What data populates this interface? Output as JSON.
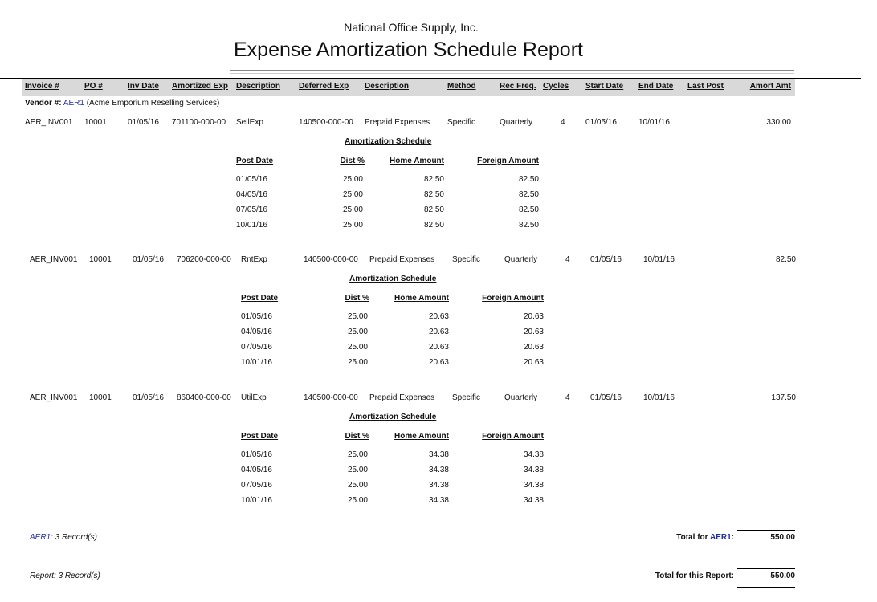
{
  "header": {
    "company": "National Office Supply, Inc.",
    "title": "Expense Amortization Schedule Report"
  },
  "columns": [
    "Invoice #",
    "PO #",
    "Inv Date",
    "Amortized Exp",
    "Description",
    "Deferred Exp",
    "Description",
    "Method",
    "Rec Freq.",
    "Cycles",
    "Start Date",
    "End Date",
    "Last Post",
    "Amort Amt"
  ],
  "vendor": {
    "label": "Vendor #:",
    "id": "AER1",
    "name": "(Acme Emporium Reselling Services)"
  },
  "schedule": {
    "title": "Amortization Schedule",
    "columns": [
      "Post Date",
      "Dist %",
      "Home Amount",
      "Foreign Amount"
    ]
  },
  "entries": [
    {
      "invoice": "AER_INV001",
      "po": "10001",
      "inv_date": "01/05/16",
      "amortized_exp": "701100-000-00",
      "description": "SellExp",
      "deferred_exp": "140500-000-00",
      "deferred_desc": "Prepaid Expenses",
      "method": "Specific",
      "freq": "Quarterly",
      "cycles": "4",
      "start": "01/05/16",
      "end": "10/01/16",
      "last_post": "",
      "amount": "330.00",
      "rows": [
        [
          "01/05/16",
          "25.00",
          "82.50",
          "82.50"
        ],
        [
          "04/05/16",
          "25.00",
          "82.50",
          "82.50"
        ],
        [
          "07/05/16",
          "25.00",
          "82.50",
          "82.50"
        ],
        [
          "10/01/16",
          "25.00",
          "82.50",
          "82.50"
        ]
      ]
    },
    {
      "invoice": "AER_INV001",
      "po": "10001",
      "inv_date": "01/05/16",
      "amortized_exp": "706200-000-00",
      "description": "RntExp",
      "deferred_exp": "140500-000-00",
      "deferred_desc": "Prepaid Expenses",
      "method": "Specific",
      "freq": "Quarterly",
      "cycles": "4",
      "start": "01/05/16",
      "end": "10/01/16",
      "last_post": "",
      "amount": "82.50",
      "rows": [
        [
          "01/05/16",
          "25.00",
          "20.63",
          "20.63"
        ],
        [
          "04/05/16",
          "25.00",
          "20.63",
          "20.63"
        ],
        [
          "07/05/16",
          "25.00",
          "20.63",
          "20.63"
        ],
        [
          "10/01/16",
          "25.00",
          "20.63",
          "20.63"
        ]
      ]
    },
    {
      "invoice": "AER_INV001",
      "po": "10001",
      "inv_date": "01/05/16",
      "amortized_exp": "860400-000-00",
      "description": "UtilExp",
      "deferred_exp": "140500-000-00",
      "deferred_desc": "Prepaid Expenses",
      "method": "Specific",
      "freq": "Quarterly",
      "cycles": "4",
      "start": "01/05/16",
      "end": "10/01/16",
      "last_post": "",
      "amount": "137.50",
      "rows": [
        [
          "01/05/16",
          "25.00",
          "34.38",
          "34.38"
        ],
        [
          "04/05/16",
          "25.00",
          "34.38",
          "34.38"
        ],
        [
          "07/05/16",
          "25.00",
          "34.38",
          "34.38"
        ],
        [
          "10/01/16",
          "25.00",
          "34.38",
          "34.38"
        ]
      ]
    }
  ],
  "footer": {
    "vendor_id": "AER1",
    "vendor_records": ": 3 Record(s)",
    "vendor_total_label": "Total for ",
    "vendor_total_colon": ":",
    "vendor_total": "550.00",
    "report_records": "Report: 3 Record(s)",
    "report_total_label": "Total for this Report:",
    "report_total": "550.00"
  },
  "colors": {
    "link": "#1f2f9f",
    "header_bar": "#d9d9d9"
  }
}
